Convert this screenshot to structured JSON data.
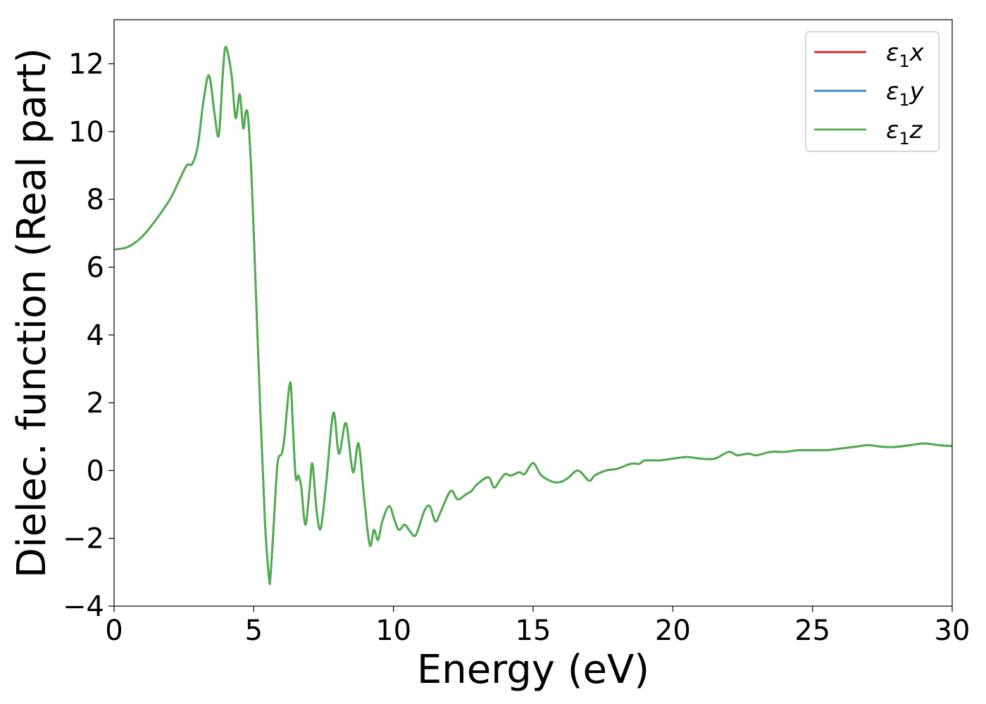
{
  "chart_data": {
    "type": "line",
    "title": "",
    "xlabel": "Energy (eV)",
    "ylabel": "Dielec. function (Real part)",
    "xlim": [
      0,
      30
    ],
    "ylim": [
      -4,
      13.3
    ],
    "xticks": [
      0,
      5,
      10,
      15,
      20,
      25,
      30
    ],
    "yticks": [
      -4,
      -2,
      0,
      2,
      4,
      6,
      8,
      10,
      12
    ],
    "grid": false,
    "legend_position": "top-right",
    "x": [
      0,
      0.5,
      1.0,
      1.5,
      2.0,
      2.3,
      2.6,
      2.8,
      3.0,
      3.2,
      3.4,
      3.6,
      3.75,
      3.9,
      4.0,
      4.2,
      4.35,
      4.5,
      4.62,
      4.72,
      4.8,
      4.9,
      5.0,
      5.2,
      5.4,
      5.55,
      5.6,
      5.7,
      5.85,
      6.0,
      6.1,
      6.3,
      6.4,
      6.5,
      6.6,
      6.7,
      6.85,
      7.0,
      7.1,
      7.25,
      7.4,
      7.6,
      7.85,
      8.05,
      8.3,
      8.55,
      8.75,
      8.95,
      9.15,
      9.3,
      9.45,
      9.6,
      9.85,
      10.05,
      10.2,
      10.4,
      10.6,
      10.8,
      11.1,
      11.3,
      11.5,
      11.7,
      12.05,
      12.3,
      12.6,
      12.8,
      13.0,
      13.4,
      13.6,
      13.8,
      14.0,
      14.2,
      14.5,
      14.7,
      15.0,
      15.3,
      15.8,
      16.2,
      16.6,
      17.0,
      17.2,
      17.6,
      18.0,
      18.5,
      18.8,
      19.0,
      19.5,
      20.0,
      20.5,
      21.0,
      21.5,
      22.0,
      22.3,
      22.7,
      23.0,
      23.5,
      24.0,
      24.5,
      25.0,
      25.5,
      26.0,
      26.5,
      27.0,
      27.5,
      28.0,
      28.5,
      29.0,
      29.5,
      30.0
    ],
    "series": [
      {
        "name": "ε1x",
        "color": "#e41a1c",
        "values": [
          6.52,
          6.6,
          6.9,
          7.4,
          8.0,
          8.5,
          9.0,
          9.05,
          9.6,
          10.9,
          11.65,
          10.5,
          9.9,
          11.8,
          12.5,
          11.7,
          10.4,
          11.1,
          10.1,
          10.6,
          10.4,
          9.0,
          7.0,
          2.5,
          -1.5,
          -3.2,
          -3.1,
          -1.8,
          0.2,
          0.5,
          1.0,
          2.6,
          1.3,
          -0.2,
          -0.15,
          -0.5,
          -1.6,
          -0.5,
          0.2,
          -1.2,
          -1.7,
          -0.3,
          1.7,
          0.5,
          1.4,
          -0.05,
          0.8,
          -0.8,
          -2.2,
          -1.75,
          -2.05,
          -1.5,
          -1.05,
          -1.5,
          -1.75,
          -1.6,
          -1.8,
          -1.9,
          -1.2,
          -1.05,
          -1.5,
          -1.2,
          -0.6,
          -0.85,
          -0.7,
          -0.6,
          -0.4,
          -0.2,
          -0.5,
          -0.3,
          -0.1,
          -0.15,
          -0.05,
          -0.1,
          0.22,
          -0.15,
          -0.35,
          -0.25,
          0.0,
          -0.3,
          -0.15,
          0.0,
          0.05,
          0.2,
          0.2,
          0.3,
          0.3,
          0.35,
          0.4,
          0.35,
          0.35,
          0.55,
          0.45,
          0.5,
          0.45,
          0.55,
          0.55,
          0.6,
          0.6,
          0.6,
          0.65,
          0.7,
          0.75,
          0.7,
          0.7,
          0.75,
          0.8,
          0.75,
          0.72
        ]
      },
      {
        "name": "ε1y",
        "color": "#377eb8",
        "values": [
          6.52,
          6.6,
          6.9,
          7.4,
          8.0,
          8.5,
          9.0,
          9.05,
          9.6,
          10.9,
          11.65,
          10.5,
          9.9,
          11.8,
          12.5,
          11.7,
          10.4,
          11.1,
          10.1,
          10.6,
          10.4,
          9.0,
          7.0,
          2.5,
          -1.5,
          -3.2,
          -3.1,
          -1.8,
          0.2,
          0.5,
          1.0,
          2.6,
          1.3,
          -0.2,
          -0.15,
          -0.5,
          -1.6,
          -0.5,
          0.2,
          -1.2,
          -1.7,
          -0.3,
          1.7,
          0.5,
          1.4,
          -0.05,
          0.8,
          -0.8,
          -2.2,
          -1.75,
          -2.05,
          -1.5,
          -1.05,
          -1.5,
          -1.75,
          -1.6,
          -1.8,
          -1.9,
          -1.2,
          -1.05,
          -1.5,
          -1.2,
          -0.6,
          -0.85,
          -0.7,
          -0.6,
          -0.4,
          -0.2,
          -0.5,
          -0.3,
          -0.1,
          -0.15,
          -0.05,
          -0.1,
          0.22,
          -0.15,
          -0.35,
          -0.25,
          0.0,
          -0.3,
          -0.15,
          0.0,
          0.05,
          0.2,
          0.2,
          0.3,
          0.3,
          0.35,
          0.4,
          0.35,
          0.35,
          0.55,
          0.45,
          0.5,
          0.45,
          0.55,
          0.55,
          0.6,
          0.6,
          0.6,
          0.65,
          0.7,
          0.75,
          0.7,
          0.7,
          0.75,
          0.8,
          0.75,
          0.72
        ]
      },
      {
        "name": "ε1z",
        "color": "#4daf4a",
        "values": [
          6.52,
          6.6,
          6.9,
          7.4,
          8.0,
          8.5,
          9.0,
          9.05,
          9.6,
          10.9,
          11.65,
          10.5,
          9.9,
          11.8,
          12.5,
          11.7,
          10.4,
          11.1,
          10.1,
          10.6,
          10.4,
          9.0,
          7.0,
          2.5,
          -1.5,
          -3.2,
          -3.1,
          -1.8,
          0.2,
          0.5,
          1.0,
          2.6,
          1.3,
          -0.2,
          -0.15,
          -0.5,
          -1.6,
          -0.5,
          0.2,
          -1.2,
          -1.7,
          -0.3,
          1.7,
          0.5,
          1.4,
          -0.05,
          0.8,
          -0.8,
          -2.2,
          -1.75,
          -2.05,
          -1.5,
          -1.05,
          -1.5,
          -1.75,
          -1.6,
          -1.8,
          -1.9,
          -1.2,
          -1.05,
          -1.5,
          -1.2,
          -0.6,
          -0.85,
          -0.7,
          -0.6,
          -0.4,
          -0.2,
          -0.5,
          -0.3,
          -0.1,
          -0.15,
          -0.05,
          -0.1,
          0.22,
          -0.15,
          -0.35,
          -0.25,
          0.0,
          -0.3,
          -0.15,
          0.0,
          0.05,
          0.2,
          0.2,
          0.3,
          0.3,
          0.35,
          0.4,
          0.35,
          0.35,
          0.55,
          0.45,
          0.5,
          0.45,
          0.55,
          0.55,
          0.6,
          0.6,
          0.6,
          0.65,
          0.7,
          0.75,
          0.7,
          0.7,
          0.75,
          0.8,
          0.75,
          0.72
        ]
      }
    ],
    "legend": [
      {
        "symbol": "ε",
        "sub": "1",
        "axis": "x",
        "color": "#e41a1c"
      },
      {
        "symbol": "ε",
        "sub": "1",
        "axis": "y",
        "color": "#377eb8"
      },
      {
        "symbol": "ε",
        "sub": "1",
        "axis": "z",
        "color": "#4daf4a"
      }
    ]
  }
}
